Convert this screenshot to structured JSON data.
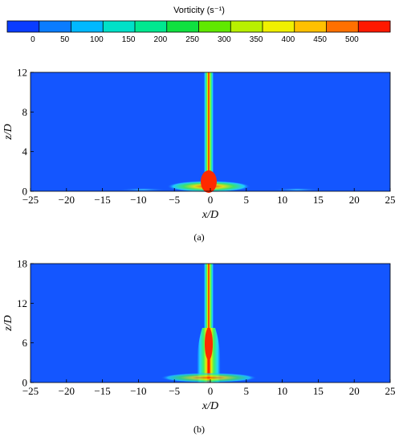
{
  "colorbar": {
    "title": "Vorticity (s⁻¹)",
    "ticks": [
      "0",
      "50",
      "100",
      "150",
      "200",
      "250",
      "300",
      "350",
      "400",
      "450",
      "500"
    ],
    "colors": [
      "#0a3cff",
      "#0a7cff",
      "#00b8ff",
      "#00e0c8",
      "#00e890",
      "#10e040",
      "#60e800",
      "#b8f000",
      "#f0f000",
      "#ffc000",
      "#ff7000",
      "#ff1800"
    ]
  },
  "field_color": "#1456ff",
  "panels": [
    {
      "caption": "(a)",
      "xlabel": "x/D",
      "ylabel": "z/D",
      "xticks": [
        "−25",
        "−20",
        "−15",
        "−10",
        "−5",
        "0",
        "5",
        "10",
        "15",
        "20",
        "25"
      ],
      "yticks": [
        "0",
        "4",
        "8",
        "12"
      ],
      "xlim": [
        -25,
        25
      ],
      "ylim": [
        0,
        12
      ]
    },
    {
      "caption": "(b)",
      "xlabel": "x/D",
      "ylabel": "z/D",
      "xticks": [
        "−25",
        "−20",
        "−15",
        "−10",
        "−5",
        "0",
        "5",
        "10",
        "15",
        "20",
        "25"
      ],
      "yticks": [
        "0",
        "6",
        "12",
        "18"
      ],
      "xlim": [
        -25,
        25
      ],
      "ylim": [
        0,
        18
      ]
    }
  ]
}
